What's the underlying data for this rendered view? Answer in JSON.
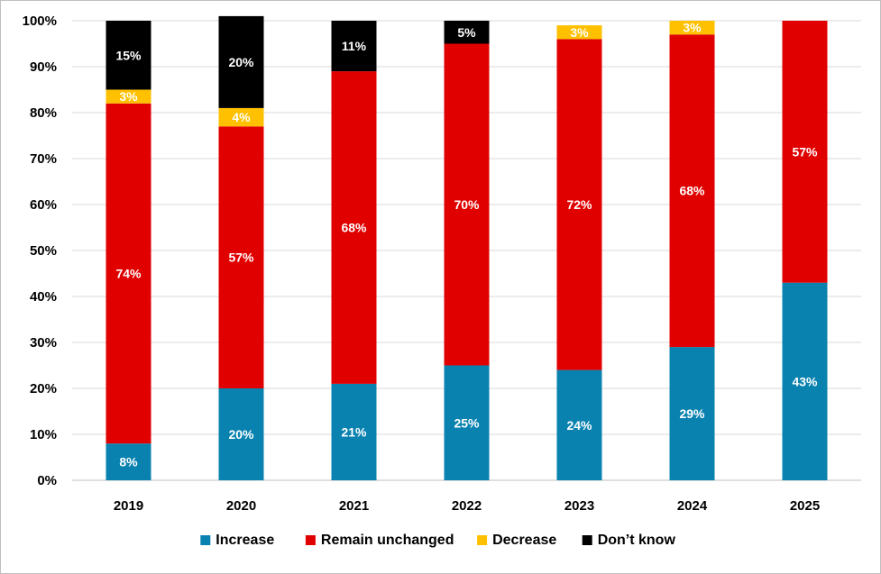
{
  "chart_data": {
    "type": "bar",
    "stacked": true,
    "categories": [
      "2019",
      "2020",
      "2021",
      "2022",
      "2023",
      "2024",
      "2025"
    ],
    "series": [
      {
        "name": "Increase",
        "color": "#0a82b0",
        "values": [
          8,
          20,
          21,
          25,
          24,
          29,
          43
        ],
        "labels": [
          "8%",
          "20%",
          "21%",
          "25%",
          "24%",
          "29%",
          "43%"
        ],
        "label_color": "#ffffff"
      },
      {
        "name": "Remain unchanged",
        "color": "#e00000",
        "values": [
          74,
          57,
          68,
          70,
          72,
          68,
          57
        ],
        "labels": [
          "74%",
          "57%",
          "68%",
          "70%",
          "72%",
          "68%",
          "57%"
        ],
        "label_color": "#ffffff"
      },
      {
        "name": "Decrease",
        "color": "#ffc000",
        "values": [
          3,
          4,
          0,
          0,
          3,
          3,
          0
        ],
        "labels": [
          "3%",
          "4%",
          "",
          "",
          "3%",
          "3%",
          ""
        ],
        "label_color": "#ffffff"
      },
      {
        "name": "Don’t know",
        "color": "#000000",
        "values": [
          15,
          20,
          11,
          5,
          0,
          0,
          0
        ],
        "labels": [
          "15%",
          "20%",
          "11%",
          "5%",
          "",
          "",
          ""
        ],
        "label_color": "#ffffff"
      }
    ],
    "yticks": [
      "0%",
      "10%",
      "20%",
      "30%",
      "40%",
      "50%",
      "60%",
      "70%",
      "80%",
      "90%",
      "100%"
    ],
    "ylim": [
      0,
      100
    ],
    "grid": true,
    "legend_position": "bottom"
  }
}
